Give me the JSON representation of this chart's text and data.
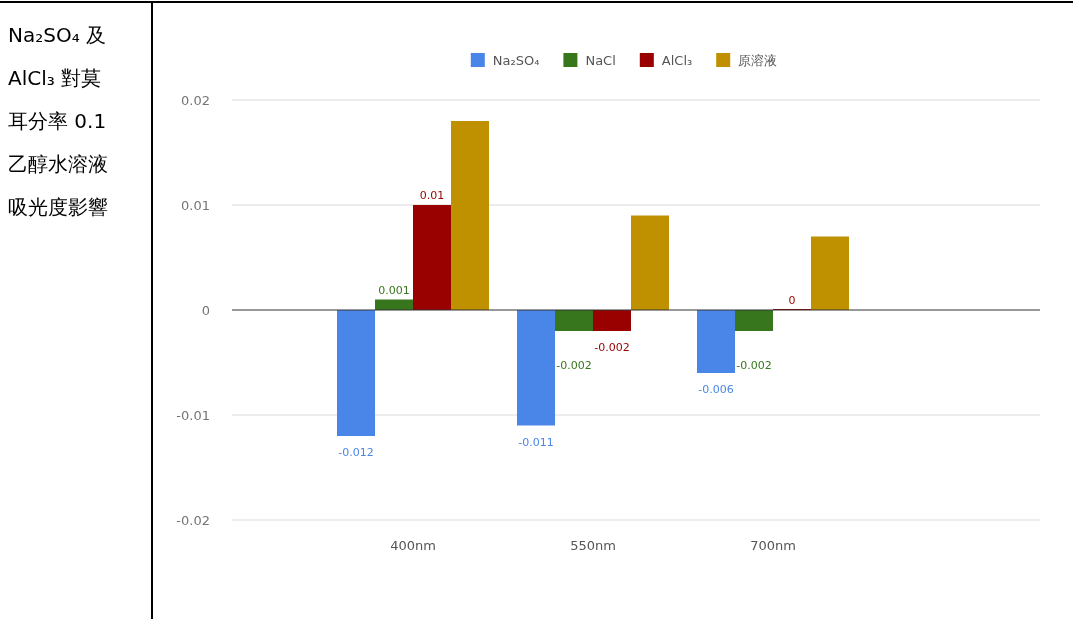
{
  "chart_data": {
    "type": "bar",
    "title": "Na₂SO₄ 及 AlCl₃ 對莫耳分率 0.1 乙醇水溶液吸光度影響",
    "categories": [
      "400nm",
      "550nm",
      "700nm"
    ],
    "series": [
      {
        "name": "Na₂SO₄",
        "color": "#4a86e8",
        "values": [
          -0.012,
          -0.011,
          -0.006
        ],
        "value_labels": [
          "-0.012",
          "-0.011",
          "-0.006"
        ]
      },
      {
        "name": "NaCl",
        "color": "#38761d",
        "values": [
          0.001,
          -0.002,
          -0.002
        ],
        "value_labels": [
          "0.001",
          "-0.002",
          "-0.002"
        ]
      },
      {
        "name": "AlCl₃",
        "color": "#990000",
        "values": [
          0.01,
          -0.002,
          0
        ],
        "value_labels": [
          "0.01",
          "-0.002",
          "0"
        ]
      },
      {
        "name": "原溶液",
        "color": "#bf9000",
        "values": [
          0.018,
          0.009,
          0.007
        ]
      }
    ],
    "ylim": [
      -0.02,
      0.02
    ],
    "yticks": [
      -0.02,
      -0.01,
      0,
      0.01,
      0.02
    ],
    "grid": "y",
    "legend": "top"
  }
}
